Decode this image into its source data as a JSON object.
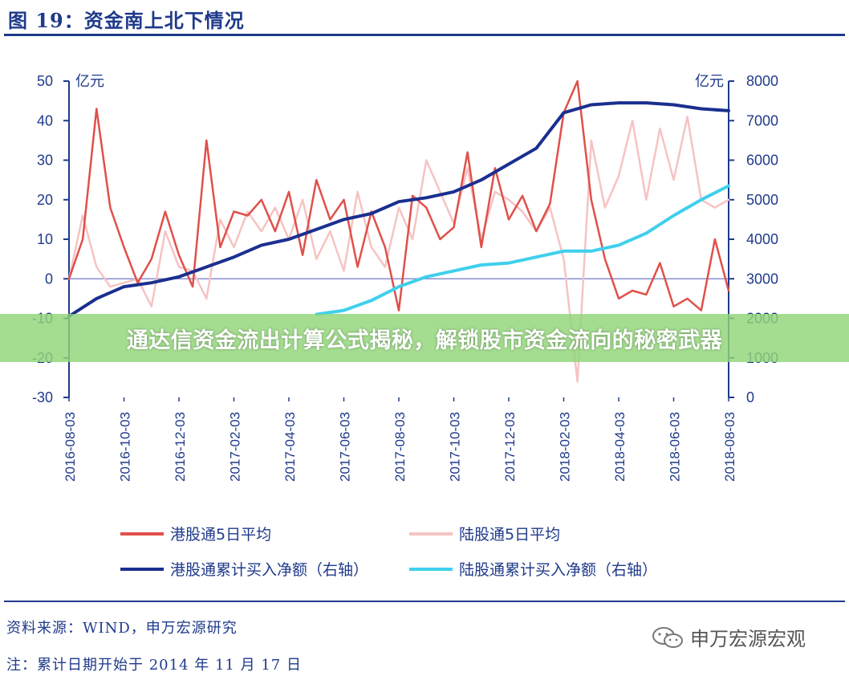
{
  "header": {
    "figure_title": "图 19：资金南上北下情况"
  },
  "banner": {
    "text": "通达信资金流出计算公式揭秘，解锁股市资金流向的秘密武器"
  },
  "footer": {
    "source": "资料来源：WIND，申万宏源研究",
    "note": "注：累计日期开始于 2014 年 11 月 17 日",
    "watermark": "申万宏源宏观"
  },
  "colors": {
    "axis": "#1f3a8a",
    "hk_avg": "#e0504a",
    "lu_avg": "#f6c3c3",
    "hk_cum": "#1a2f8f",
    "lu_cum": "#3fd0ec",
    "zero_line": "#8a8fd0",
    "banner": "#90d678"
  },
  "chart_data": {
    "type": "line",
    "left_axis": {
      "unit": "亿元",
      "ylim": [
        -30,
        50
      ],
      "ticks": [
        "50",
        "40",
        "30",
        "20",
        "10",
        "0",
        "-10",
        "-20",
        "-30"
      ]
    },
    "right_axis": {
      "unit": "亿元",
      "ylim": [
        0,
        8000
      ],
      "ticks": [
        "8000",
        "7000",
        "6000",
        "5000",
        "4000",
        "3000",
        "2000",
        "1000",
        "0"
      ]
    },
    "x_labels": [
      "2016-08-03",
      "2016-10-03",
      "2016-12-03",
      "2017-02-03",
      "2017-04-03",
      "2017-06-03",
      "2017-08-03",
      "2017-10-03",
      "2017-12-03",
      "2018-02-03",
      "2018-04-03",
      "2018-06-03",
      "2018-08-03"
    ],
    "x_positions": [
      0,
      2,
      4,
      6,
      8,
      10,
      12,
      14,
      16,
      18,
      20,
      22,
      24
    ],
    "series": [
      {
        "name": "港股通5日平均",
        "axis": "left",
        "color": "#e0504a",
        "x": [
          0,
          0.5,
          1,
          1.5,
          2,
          2.5,
          3,
          3.5,
          4,
          4.5,
          5,
          5.5,
          6,
          6.5,
          7,
          7.5,
          8,
          8.5,
          9,
          9.5,
          10,
          10.5,
          11,
          11.5,
          12,
          12.5,
          13,
          13.5,
          14,
          14.5,
          15,
          15.5,
          16,
          16.5,
          17,
          17.5,
          18,
          18.5,
          19,
          19.5,
          20,
          20.5,
          21,
          21.5,
          22,
          22.5,
          23,
          23.5,
          24
        ],
        "values": [
          0,
          10,
          43,
          18,
          8,
          -1,
          5,
          17,
          6,
          -2,
          35,
          8,
          17,
          16,
          20,
          12,
          22,
          6,
          25,
          15,
          20,
          3,
          17,
          8,
          -8,
          21,
          18,
          10,
          13,
          32,
          8,
          28,
          15,
          21,
          12,
          19,
          42,
          50,
          20,
          5,
          -5,
          -3,
          -4,
          4,
          -7,
          -5,
          -8,
          10,
          -3
        ]
      },
      {
        "name": "陆股通5日平均",
        "axis": "left",
        "color": "#f6c3c3",
        "x": [
          0,
          0.5,
          1,
          1.5,
          2,
          2.5,
          3,
          3.5,
          4,
          4.5,
          5,
          5.5,
          6,
          6.5,
          7,
          7.5,
          8,
          8.5,
          9,
          9.5,
          10,
          10.5,
          11,
          11.5,
          12,
          12.5,
          13,
          13.5,
          14,
          14.5,
          15,
          15.5,
          16,
          16.5,
          17,
          17.5,
          18,
          18.5,
          19,
          19.5,
          20,
          20.5,
          21,
          21.5,
          22,
          22.5,
          23,
          23.5,
          24
        ],
        "values": [
          0,
          16,
          3,
          -2,
          -1,
          0,
          -7,
          12,
          3,
          2,
          -5,
          15,
          8,
          17,
          12,
          18,
          10,
          20,
          5,
          12,
          2,
          22,
          8,
          3,
          18,
          10,
          30,
          22,
          14,
          28,
          10,
          22,
          20,
          17,
          12,
          18,
          5,
          -26,
          35,
          18,
          26,
          40,
          20,
          38,
          25,
          41,
          20,
          18,
          20
        ]
      },
      {
        "name": "港股通累计买入净额（右轴）",
        "axis": "right",
        "color": "#1a2f8f",
        "x": [
          0,
          1,
          2,
          3,
          4,
          5,
          6,
          7,
          8,
          9,
          10,
          11,
          12,
          13,
          14,
          15,
          16,
          17,
          18,
          19,
          20,
          21,
          22,
          23,
          24
        ],
        "values": [
          2050,
          2500,
          2800,
          2900,
          3050,
          3300,
          3550,
          3850,
          4000,
          4250,
          4500,
          4650,
          4950,
          5050,
          5200,
          5500,
          5900,
          6300,
          7200,
          7400,
          7450,
          7450,
          7400,
          7300,
          7250
        ]
      },
      {
        "name": "陆股通累计买入净额（右轴）",
        "axis": "right",
        "color": "#3fd0ec",
        "x": [
          9,
          10,
          11,
          12,
          13,
          14,
          15,
          16,
          17,
          18,
          19,
          20,
          21,
          22,
          23,
          24
        ],
        "values": [
          2100,
          2200,
          2450,
          2800,
          3050,
          3200,
          3350,
          3400,
          3550,
          3700,
          3700,
          3850,
          4150,
          4600,
          5000,
          5350
        ]
      }
    ],
    "legend": {
      "placement": "bottom",
      "columns": 2
    }
  }
}
